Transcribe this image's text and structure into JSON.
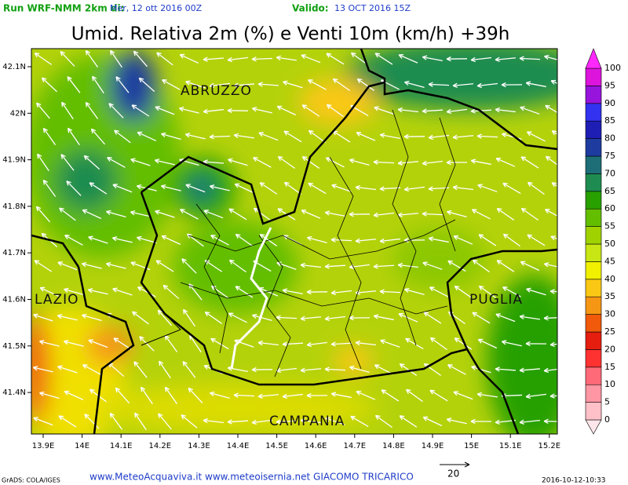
{
  "header": {
    "run": "Run WRF-NMM 2km di:",
    "run_date": "Mer, 12 ott 2016 00Z",
    "valid_label": "Valido:",
    "valid_date": "13 OCT 2016 15Z"
  },
  "title": "Umid. Relativa 2m (%) e Venti 10m (km/h) +39h",
  "lat_labels": [
    "42.1N",
    "42N",
    "41.9N",
    "41.8N",
    "41.7N",
    "41.6N",
    "41.5N",
    "41.4N"
  ],
  "lon_labels": [
    "13.9E",
    "14E",
    "14.1E",
    "14.2E",
    "14.3E",
    "14.4E",
    "14.5E",
    "14.6E",
    "14.7E",
    "14.8E",
    "14.9E",
    "15E",
    "15.1E",
    "15.2E"
  ],
  "regions": [
    "ABRUZZO",
    "LAZIO",
    "PUGLIA",
    "CAMPANIA"
  ],
  "legend": {
    "levels": [
      0,
      5,
      10,
      15,
      20,
      25,
      30,
      35,
      40,
      45,
      50,
      55,
      60,
      65,
      70,
      75,
      80,
      85,
      90,
      95,
      100
    ],
    "colors": [
      "#ffe6ea",
      "#ffc0c8",
      "#ff96a4",
      "#ff6a78",
      "#ff3232",
      "#e61e10",
      "#f05a0a",
      "#f59614",
      "#fac814",
      "#f0f000",
      "#c8e614",
      "#a0d200",
      "#64be00",
      "#28a000",
      "#1e8c50",
      "#1e6e78",
      "#1e3ca0",
      "#1e1eb4",
      "#3232f0",
      "#9614dc",
      "#dc14dc",
      "#ff28ff"
    ]
  },
  "wind_scale": "20",
  "footer": {
    "grads": "GrADS: COLA/IGES",
    "credits": "www.MeteoAcquaviva.it www.meteoisernia.net GIACOMO TRICARICO",
    "timestamp": "2016-10-12-10:33"
  }
}
